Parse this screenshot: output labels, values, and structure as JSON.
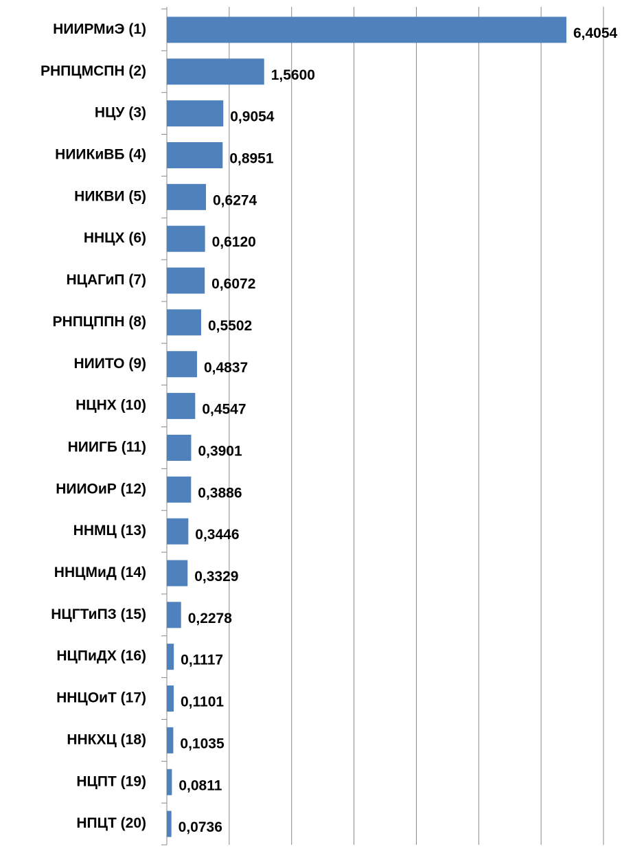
{
  "chart_data": {
    "type": "hbar",
    "categories": [
      "НИИРМиЭ (1)",
      "РНПЦМСПН (2)",
      "НЦУ (3)",
      "НИИКиВБ (4)",
      "НИКВИ (5)",
      "ННЦХ (6)",
      "НЦАГиП (7)",
      "РНПЦППН (8)",
      "НИИТО (9)",
      "НЦНХ (10)",
      "НИИГБ (11)",
      "НИИОиР (12)",
      "ННМЦ (13)",
      "ННЦМиД (14)",
      "НЦГТиПЗ (15)",
      "НЦПиДХ (16)",
      "ННЦОиТ (17)",
      "ННКХЦ (18)",
      "НЦПТ (19)",
      "НПЦТ (20)"
    ],
    "values": [
      6.4054,
      1.56,
      0.9054,
      0.8951,
      0.6274,
      0.612,
      0.6072,
      0.5502,
      0.4837,
      0.4547,
      0.3901,
      0.3886,
      0.3446,
      0.3329,
      0.2278,
      0.1117,
      0.1101,
      0.1035,
      0.0811,
      0.0736
    ],
    "value_labels": [
      "6,4054",
      "1,5600",
      "0,9054",
      "0,8951",
      "0,6274",
      "0,6120",
      "0,6072",
      "0,5502",
      "0,4837",
      "0,4547",
      "0,3901",
      "0,3886",
      "0,3446",
      "0,3329",
      "0,2278",
      "0,1117",
      "0,1101",
      "0,1035",
      "0,0811",
      "0,0736"
    ],
    "color": "#4f81bd",
    "xlim": [
      0,
      7
    ],
    "xticks": [
      0,
      1,
      2,
      3,
      4,
      5,
      6,
      7
    ],
    "grid": true
  }
}
